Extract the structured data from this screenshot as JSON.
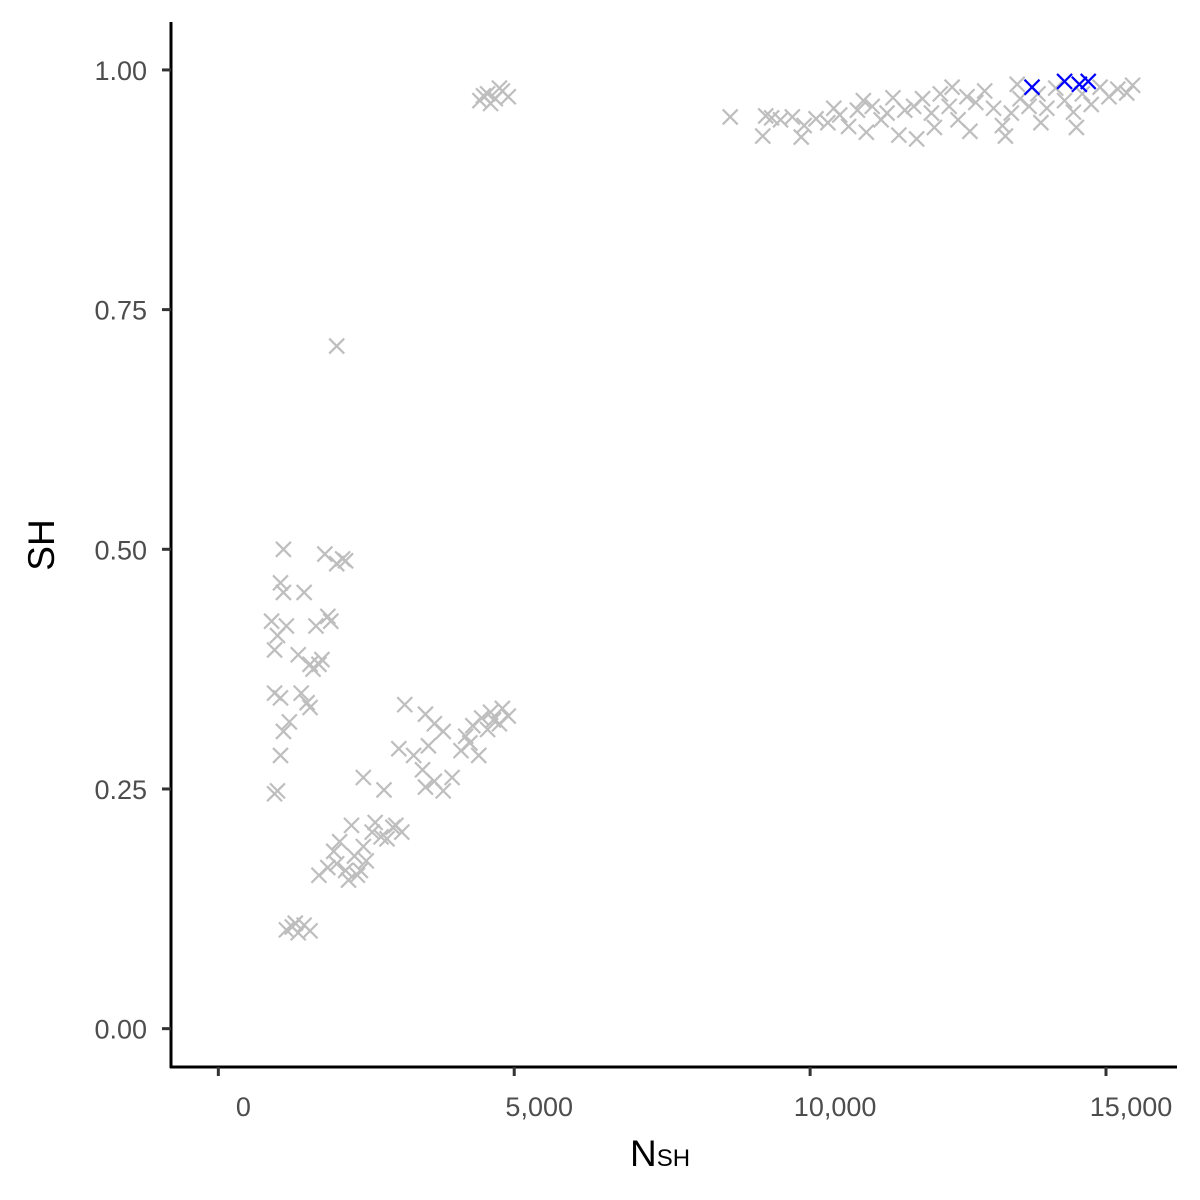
{
  "chart_data": {
    "type": "scatter",
    "marker": "x",
    "xlabel": "N",
    "xlabel_subscript": "SH",
    "ylabel": "SH",
    "xlim": [
      -800,
      16200
    ],
    "ylim": [
      -0.04,
      1.05
    ],
    "x_ticks": [
      {
        "value": 0,
        "label": "0"
      },
      {
        "value": 5000,
        "label": "5,000"
      },
      {
        "value": 10000,
        "label": "10,000"
      },
      {
        "value": 15000,
        "label": "15,000"
      }
    ],
    "y_ticks": [
      {
        "value": 0.0,
        "label": "0.00"
      },
      {
        "value": 0.25,
        "label": "0.25"
      },
      {
        "value": 0.5,
        "label": "0.50"
      },
      {
        "value": 0.75,
        "label": "0.75"
      },
      {
        "value": 1.0,
        "label": "1.00"
      }
    ],
    "grid": false,
    "legend": "none",
    "colors": {
      "gray": "#bebebe",
      "highlight": "#0000ff"
    },
    "series": [
      {
        "color": "#bebebe",
        "points": [
          [
            4420,
            0.968
          ],
          [
            4550,
            0.975
          ],
          [
            4680,
            0.97
          ],
          [
            4800,
            0.978
          ],
          [
            4900,
            0.972
          ],
          [
            4600,
            0.965
          ],
          [
            4750,
            0.981
          ],
          [
            4480,
            0.973
          ],
          [
            8650,
            0.951
          ],
          [
            9200,
            0.931
          ],
          [
            9250,
            0.952
          ],
          [
            9350,
            0.95
          ],
          [
            9500,
            0.948
          ],
          [
            9700,
            0.951
          ],
          [
            9900,
            0.942
          ],
          [
            9850,
            0.93
          ],
          [
            10100,
            0.949
          ],
          [
            10300,
            0.945
          ],
          [
            10500,
            0.953
          ],
          [
            10650,
            0.941
          ],
          [
            10800,
            0.958
          ],
          [
            10950,
            0.935
          ],
          [
            11050,
            0.962
          ],
          [
            11200,
            0.948
          ],
          [
            11400,
            0.971
          ],
          [
            11600,
            0.958
          ],
          [
            11750,
            0.962
          ],
          [
            11900,
            0.97
          ],
          [
            12050,
            0.955
          ],
          [
            12200,
            0.975
          ],
          [
            12350,
            0.962
          ],
          [
            12500,
            0.948
          ],
          [
            12650,
            0.972
          ],
          [
            12800,
            0.966
          ],
          [
            12950,
            0.978
          ],
          [
            13100,
            0.96
          ],
          [
            13250,
            0.942
          ],
          [
            13400,
            0.955
          ],
          [
            13550,
            0.97
          ],
          [
            13700,
            0.962
          ],
          [
            13850,
            0.975
          ],
          [
            14000,
            0.96
          ],
          [
            14150,
            0.981
          ],
          [
            14300,
            0.968
          ],
          [
            14450,
            0.956
          ],
          [
            14600,
            0.975
          ],
          [
            14750,
            0.964
          ],
          [
            14900,
            0.982
          ],
          [
            15050,
            0.972
          ],
          [
            15200,
            0.98
          ],
          [
            15350,
            0.976
          ],
          [
            15450,
            0.984
          ],
          [
            11500,
            0.932
          ],
          [
            11800,
            0.928
          ],
          [
            12100,
            0.94
          ],
          [
            12700,
            0.936
          ],
          [
            13300,
            0.931
          ],
          [
            13900,
            0.945
          ],
          [
            14500,
            0.94
          ],
          [
            10400,
            0.96
          ],
          [
            10900,
            0.968
          ],
          [
            11300,
            0.955
          ],
          [
            12400,
            0.982
          ],
          [
            13500,
            0.985
          ],
          [
            4300,
            0.316
          ],
          [
            4450,
            0.324
          ],
          [
            4600,
            0.33
          ],
          [
            4750,
            0.318
          ],
          [
            4900,
            0.326
          ],
          [
            4550,
            0.312
          ],
          [
            4800,
            0.334
          ],
          [
            4650,
            0.322
          ],
          [
            4100,
            0.29
          ],
          [
            4250,
            0.298
          ],
          [
            4400,
            0.285
          ],
          [
            4180,
            0.305
          ],
          [
            3500,
            0.328
          ],
          [
            3650,
            0.318
          ],
          [
            3800,
            0.31
          ],
          [
            3150,
            0.338
          ],
          [
            3500,
            0.252
          ],
          [
            3650,
            0.258
          ],
          [
            3800,
            0.248
          ],
          [
            3950,
            0.262
          ],
          [
            3450,
            0.27
          ],
          [
            3300,
            0.285
          ],
          [
            3550,
            0.295
          ],
          [
            3050,
            0.292
          ],
          [
            2750,
            0.2
          ],
          [
            2950,
            0.21
          ],
          [
            3100,
            0.205
          ],
          [
            2650,
            0.215
          ],
          [
            2850,
            0.198
          ],
          [
            3000,
            0.212
          ],
          [
            2000,
            0.172
          ],
          [
            2150,
            0.165
          ],
          [
            2300,
            0.18
          ],
          [
            2450,
            0.19
          ],
          [
            2200,
            0.155
          ],
          [
            2350,
            0.16
          ],
          [
            2050,
            0.195
          ],
          [
            1850,
            0.168
          ],
          [
            1700,
            0.16
          ],
          [
            2500,
            0.175
          ],
          [
            2600,
            0.205
          ],
          [
            2250,
            0.212
          ],
          [
            1950,
            0.185
          ],
          [
            2400,
            0.165
          ],
          [
            1150,
            0.103
          ],
          [
            1250,
            0.106
          ],
          [
            1350,
            0.1
          ],
          [
            1450,
            0.108
          ],
          [
            1550,
            0.102
          ],
          [
            1300,
            0.11
          ],
          [
            900,
            0.425
          ],
          [
            950,
            0.395
          ],
          [
            1000,
            0.41
          ],
          [
            1100,
            0.5
          ],
          [
            1150,
            0.42
          ],
          [
            1050,
            0.465
          ],
          [
            1100,
            0.455
          ],
          [
            950,
            0.35
          ],
          [
            1050,
            0.345
          ],
          [
            1200,
            0.32
          ],
          [
            1100,
            0.31
          ],
          [
            1050,
            0.285
          ],
          [
            950,
            0.245
          ],
          [
            1000,
            0.248
          ],
          [
            1350,
            0.39
          ],
          [
            1450,
            0.455
          ],
          [
            1400,
            0.35
          ],
          [
            1500,
            0.34
          ],
          [
            1550,
            0.335
          ],
          [
            1600,
            0.375
          ],
          [
            1700,
            0.38
          ],
          [
            1750,
            0.385
          ],
          [
            1650,
            0.42
          ],
          [
            1850,
            0.43
          ],
          [
            1900,
            0.425
          ],
          [
            1800,
            0.495
          ],
          [
            2000,
            0.485
          ],
          [
            2100,
            0.49
          ],
          [
            2150,
            0.488
          ],
          [
            1550,
            0.38
          ],
          [
            2450,
            0.262
          ],
          [
            2800,
            0.249
          ],
          [
            2000,
            0.712
          ]
        ]
      },
      {
        "color": "#0000ff",
        "points": [
          [
            13750,
            0.982
          ],
          [
            14300,
            0.988
          ],
          [
            14550,
            0.985
          ],
          [
            14700,
            0.988
          ]
        ]
      }
    ]
  }
}
